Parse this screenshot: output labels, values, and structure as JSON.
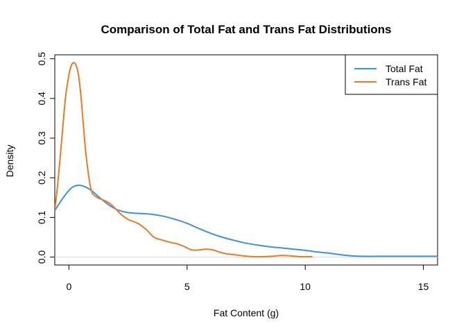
{
  "chart_data": {
    "type": "line",
    "title": "Comparison of Total Fat and Trans Fat Distributions",
    "xlabel": "Fat Content (g)",
    "ylabel": "Density",
    "xlim": [
      -0.6,
      15.6
    ],
    "ylim": [
      -0.02,
      0.51
    ],
    "x_ticks": [
      0,
      5,
      10,
      15
    ],
    "y_ticks": [
      0.0,
      0.1,
      0.2,
      0.3,
      0.4,
      0.5
    ],
    "x_tick_labels": [
      "0",
      "5",
      "10",
      "15"
    ],
    "y_tick_labels": [
      "0.0",
      "0.1",
      "0.2",
      "0.3",
      "0.4",
      "0.5"
    ],
    "legend_position": "top-right",
    "series": [
      {
        "name": "Total Fat",
        "color": "#3d8fe8",
        "x": [
          -0.6,
          -0.3,
          0.0,
          0.2,
          0.4,
          0.6,
          0.9,
          1.2,
          1.5,
          1.8,
          2.1,
          2.5,
          3.0,
          3.5,
          4.0,
          4.5,
          5.0,
          5.5,
          6.0,
          6.5,
          7.0,
          7.5,
          8.0,
          8.5,
          9.0,
          9.5,
          10.0,
          10.5,
          11.0,
          11.5,
          12.0,
          12.5,
          13.0,
          13.5,
          14.0,
          14.5,
          15.0,
          15.6
        ],
        "y": [
          0.117,
          0.145,
          0.168,
          0.178,
          0.181,
          0.179,
          0.17,
          0.155,
          0.14,
          0.127,
          0.118,
          0.112,
          0.11,
          0.108,
          0.103,
          0.095,
          0.085,
          0.072,
          0.06,
          0.05,
          0.042,
          0.035,
          0.03,
          0.026,
          0.023,
          0.02,
          0.017,
          0.013,
          0.01,
          0.006,
          0.003,
          0.002,
          0.002,
          0.002,
          0.002,
          0.002,
          0.002,
          0.002
        ]
      },
      {
        "name": "Trans Fat",
        "color": "#f07820",
        "x": [
          -0.6,
          -0.45,
          -0.3,
          -0.15,
          0.0,
          0.1,
          0.2,
          0.3,
          0.4,
          0.5,
          0.6,
          0.7,
          0.8,
          0.9,
          1.0,
          1.2,
          1.4,
          1.6,
          1.8,
          2.0,
          2.2,
          2.5,
          2.8,
          3.0,
          3.3,
          3.6,
          4.0,
          4.3,
          4.6,
          4.9,
          5.2,
          5.5,
          5.8,
          6.1,
          6.4,
          6.7,
          7.0,
          7.4,
          7.8,
          8.2,
          8.6,
          9.0,
          9.4,
          9.8,
          10.3
        ],
        "y": [
          0.117,
          0.2,
          0.3,
          0.4,
          0.46,
          0.483,
          0.49,
          0.484,
          0.46,
          0.41,
          0.34,
          0.27,
          0.22,
          0.18,
          0.16,
          0.15,
          0.145,
          0.14,
          0.132,
          0.12,
          0.108,
          0.095,
          0.088,
          0.082,
          0.068,
          0.05,
          0.042,
          0.037,
          0.033,
          0.026,
          0.018,
          0.018,
          0.02,
          0.018,
          0.012,
          0.008,
          0.006,
          0.003,
          0.001,
          0.001,
          0.002,
          0.004,
          0.003,
          0.001,
          0.001
        ]
      }
    ]
  }
}
